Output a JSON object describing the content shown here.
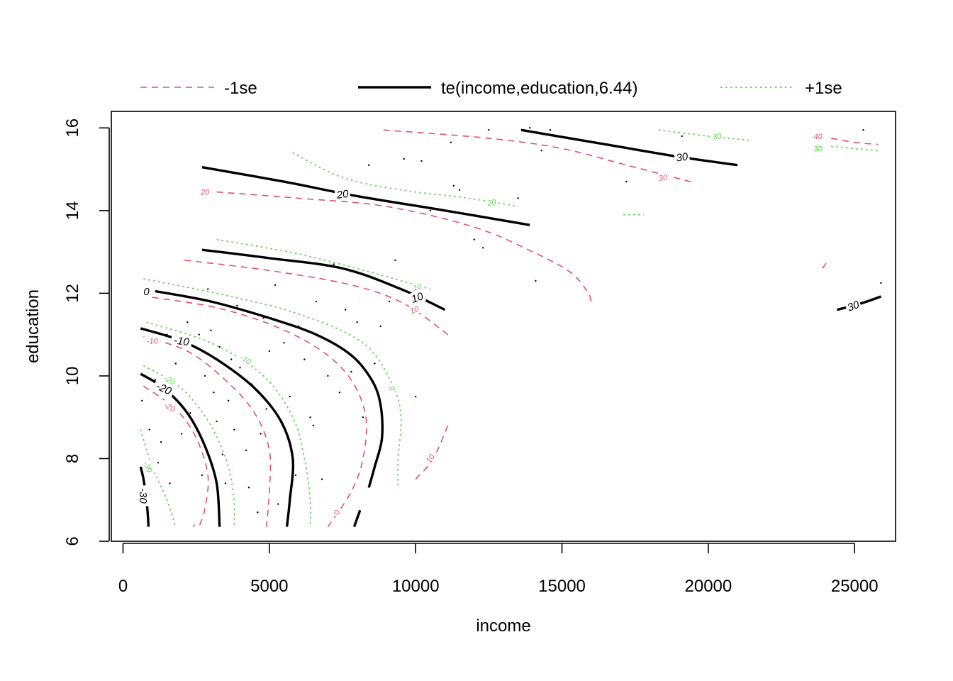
{
  "chart_data": {
    "type": "contour",
    "xlabel": "income",
    "ylabel": "education",
    "xlim": [
      -400,
      26400
    ],
    "ylim": [
      6,
      16.4
    ],
    "x_ticks": [
      0,
      5000,
      10000,
      15000,
      20000,
      25000
    ],
    "x_tick_labels": [
      "0",
      "5000",
      "10000",
      "15000",
      "20000",
      "25000"
    ],
    "y_ticks": [
      6,
      8,
      10,
      12,
      14,
      16
    ],
    "y_tick_labels": [
      "6",
      "8",
      "10",
      "12",
      "14",
      "16"
    ],
    "legend_position": "top",
    "legend": [
      {
        "label": "-1se",
        "series": "minus_se",
        "color": "#DF536B",
        "style": "dashed"
      },
      {
        "label": "te(income,education,6.44)",
        "series": "fit",
        "color": "#000000",
        "style": "solid"
      },
      {
        "label": "+1se",
        "series": "plus_se",
        "color": "#61D04F",
        "style": "dotted"
      }
    ],
    "series_styles": {
      "fit": {
        "color": "#000000",
        "dash": "",
        "width": 3.4,
        "label_size": 15
      },
      "minus_se": {
        "color": "#DF536B",
        "dash": "9,7",
        "width": 1.6,
        "label_size": 11
      },
      "plus_se": {
        "color": "#61D04F",
        "dash": "2.5,4.5",
        "width": 1.8,
        "label_size": 11
      }
    },
    "contours": [
      {
        "series": "fit",
        "label": "-30",
        "label_at": [
          700,
          7.1
        ],
        "label_rotate": 90,
        "points": [
          [
            600,
            7.8
          ],
          [
            700,
            7.5
          ],
          [
            800,
            7.0
          ],
          [
            850,
            6.6
          ],
          [
            870,
            6.35
          ]
        ]
      },
      {
        "series": "fit",
        "label": "-20",
        "label_at": [
          1400,
          9.7
        ],
        "label_rotate": 25,
        "points": [
          [
            600,
            10.05
          ],
          [
            1400,
            9.7
          ],
          [
            2200,
            9.1
          ],
          [
            2800,
            8.3
          ],
          [
            3200,
            7.4
          ],
          [
            3300,
            6.35
          ]
        ]
      },
      {
        "series": "fit",
        "label": "-10",
        "label_at": [
          2000,
          10.85
        ],
        "label_rotate": 8,
        "points": [
          [
            600,
            11.15
          ],
          [
            2000,
            10.85
          ],
          [
            3200,
            10.4
          ],
          [
            4500,
            9.7
          ],
          [
            5400,
            8.9
          ],
          [
            5800,
            8.0
          ],
          [
            5700,
            7.0
          ],
          [
            5600,
            6.35
          ]
        ]
      },
      {
        "series": "fit",
        "label": "0",
        "label_at": [
          800,
          12.05
        ],
        "label_rotate": 0,
        "points": [
          [
            1100,
            12.05
          ],
          [
            3000,
            11.8
          ],
          [
            5000,
            11.4
          ],
          [
            6600,
            11.0
          ],
          [
            7800,
            10.5
          ],
          [
            8500,
            9.9
          ],
          [
            8800,
            9.3
          ],
          [
            8850,
            8.5
          ],
          [
            8600,
            7.8
          ],
          [
            8400,
            7.3
          ]
        ]
      },
      {
        "series": "fit",
        "label": null,
        "points": [
          [
            8100,
            6.75
          ],
          [
            7900,
            6.35
          ]
        ]
      },
      {
        "series": "fit",
        "label": "10",
        "label_at": [
          10050,
          11.9
        ],
        "label_rotate": -20,
        "points": [
          [
            2700,
            13.05
          ],
          [
            5000,
            12.85
          ],
          [
            7500,
            12.6
          ],
          [
            9500,
            12.1
          ],
          [
            11000,
            11.6
          ]
        ]
      },
      {
        "series": "fit",
        "label": "20",
        "label_at": [
          7500,
          14.4
        ],
        "label_rotate": -8,
        "points": [
          [
            2700,
            15.05
          ],
          [
            5500,
            14.7
          ],
          [
            8000,
            14.35
          ],
          [
            11000,
            14.0
          ],
          [
            13900,
            13.65
          ]
        ]
      },
      {
        "series": "fit",
        "label": "30",
        "label_at": [
          19100,
          15.3
        ],
        "label_rotate": -8,
        "points": [
          [
            13600,
            15.95
          ],
          [
            16500,
            15.6
          ],
          [
            19000,
            15.3
          ],
          [
            21000,
            15.1
          ]
        ]
      },
      {
        "series": "fit",
        "label": "30",
        "label_at": [
          24950,
          11.7
        ],
        "label_rotate": -20,
        "points": [
          [
            24400,
            11.6
          ],
          [
            25200,
            11.75
          ],
          [
            25900,
            11.92
          ]
        ]
      },
      {
        "series": "minus_se",
        "label": "-30",
        "label_at": null,
        "points": [
          [
            2400,
            6.35
          ],
          [
            2450,
            6.4
          ]
        ]
      },
      {
        "series": "minus_se",
        "label": "-20",
        "label_at": [
          1600,
          9.25
        ],
        "label_rotate": 30,
        "points": [
          [
            700,
            9.75
          ],
          [
            1800,
            9.2
          ],
          [
            2500,
            8.5
          ],
          [
            2900,
            7.6
          ],
          [
            2800,
            6.8
          ],
          [
            2600,
            6.35
          ]
        ]
      },
      {
        "series": "minus_se",
        "label": "-10",
        "label_at": [
          1000,
          10.85
        ],
        "label_rotate": 0,
        "points": [
          [
            700,
            10.95
          ],
          [
            2200,
            10.6
          ],
          [
            3500,
            9.9
          ],
          [
            4500,
            9.1
          ],
          [
            5000,
            8.2
          ],
          [
            5000,
            7.2
          ],
          [
            4900,
            6.35
          ]
        ]
      },
      {
        "series": "minus_se",
        "label": "0",
        "label_at": [
          7300,
          6.7
        ],
        "label_rotate": -70,
        "points": [
          [
            1000,
            11.9
          ],
          [
            3200,
            11.65
          ],
          [
            5200,
            11.2
          ],
          [
            6800,
            10.6
          ],
          [
            7800,
            9.9
          ],
          [
            8300,
            9.0
          ],
          [
            8200,
            8.0
          ],
          [
            7800,
            7.2
          ],
          [
            7000,
            6.35
          ]
        ]
      },
      {
        "series": "minus_se",
        "label": "10",
        "label_at": [
          9950,
          11.6
        ],
        "label_rotate": -20,
        "points": [
          [
            2100,
            12.8
          ],
          [
            5000,
            12.55
          ],
          [
            7800,
            12.2
          ],
          [
            9600,
            11.75
          ],
          [
            11100,
            11.0
          ]
        ]
      },
      {
        "series": "minus_se",
        "label": "10",
        "label_at": [
          10500,
          8.0
        ],
        "label_rotate": -60,
        "points": [
          [
            10000,
            7.5
          ],
          [
            10600,
            8.0
          ],
          [
            11100,
            8.8
          ]
        ]
      },
      {
        "series": "minus_se",
        "label": "20",
        "label_at": [
          2800,
          14.45
        ],
        "label_rotate": 0,
        "points": [
          [
            3200,
            14.45
          ],
          [
            6000,
            14.3
          ],
          [
            9000,
            14.1
          ],
          [
            12000,
            13.6
          ],
          [
            14000,
            13.0
          ],
          [
            15300,
            12.5
          ],
          [
            15900,
            12.0
          ],
          [
            16000,
            11.75
          ]
        ]
      },
      {
        "series": "minus_se",
        "label": "30",
        "label_at": [
          18450,
          14.8
        ],
        "label_rotate": -10,
        "points": [
          [
            8900,
            15.95
          ],
          [
            12500,
            15.75
          ],
          [
            15000,
            15.5
          ],
          [
            17200,
            15.1
          ],
          [
            19400,
            14.7
          ]
        ]
      },
      {
        "series": "minus_se",
        "label": "40",
        "label_at": [
          23750,
          15.8
        ],
        "label_rotate": 0,
        "points": [
          [
            24200,
            15.75
          ],
          [
            25000,
            15.65
          ],
          [
            25800,
            15.6
          ]
        ]
      },
      {
        "series": "minus_se",
        "label": null,
        "points": [
          [
            23900,
            12.6
          ],
          [
            24050,
            12.75
          ]
        ]
      },
      {
        "series": "plus_se",
        "label": "-30",
        "label_at": [
          850,
          7.8
        ],
        "label_rotate": 65,
        "points": [
          [
            600,
            8.7
          ],
          [
            1000,
            7.8
          ],
          [
            1500,
            7.0
          ],
          [
            1800,
            6.35
          ]
        ]
      },
      {
        "series": "plus_se",
        "label": "-20",
        "label_at": [
          1600,
          9.9
        ],
        "label_rotate": 30,
        "points": [
          [
            700,
            10.25
          ],
          [
            2000,
            9.7
          ],
          [
            3000,
            8.8
          ],
          [
            3600,
            7.8
          ],
          [
            3800,
            6.9
          ],
          [
            3800,
            6.35
          ]
        ]
      },
      {
        "series": "plus_se",
        "label": "-10",
        "label_at": [
          4200,
          10.4
        ],
        "label_rotate": 35,
        "points": [
          [
            800,
            11.3
          ],
          [
            3000,
            10.8
          ],
          [
            4800,
            10.0
          ],
          [
            5800,
            9.0
          ],
          [
            6200,
            8.0
          ],
          [
            6400,
            7.0
          ],
          [
            6400,
            6.35
          ]
        ]
      },
      {
        "series": "plus_se",
        "label": "0",
        "label_at": [
          9200,
          9.7
        ],
        "label_rotate": 70,
        "points": [
          [
            700,
            12.35
          ],
          [
            3500,
            11.95
          ],
          [
            6000,
            11.5
          ],
          [
            8200,
            10.8
          ],
          [
            9200,
            9.8
          ],
          [
            9500,
            9.0
          ],
          [
            9400,
            8.0
          ],
          [
            9400,
            7.3
          ]
        ]
      },
      {
        "series": "plus_se",
        "label": "10",
        "label_at": [
          10050,
          12.15
        ],
        "label_rotate": -15,
        "points": [
          [
            3200,
            13.3
          ],
          [
            6000,
            12.95
          ],
          [
            8500,
            12.5
          ],
          [
            10500,
            12.1
          ]
        ]
      },
      {
        "series": "plus_se",
        "label": "20",
        "label_at": [
          12600,
          14.2
        ],
        "label_rotate": -8,
        "points": [
          [
            5800,
            15.4
          ],
          [
            7500,
            14.8
          ],
          [
            9500,
            14.5
          ],
          [
            11800,
            14.3
          ],
          [
            13500,
            14.1
          ]
        ]
      },
      {
        "series": "plus_se",
        "label": "30",
        "label_at": [
          20300,
          15.8
        ],
        "label_rotate": -8,
        "points": [
          [
            18300,
            15.95
          ],
          [
            20000,
            15.8
          ],
          [
            21400,
            15.7
          ]
        ]
      },
      {
        "series": "plus_se",
        "label": "30",
        "label_at": [
          23750,
          15.5
        ],
        "label_rotate": 0,
        "points": [
          [
            24200,
            15.55
          ],
          [
            25000,
            15.5
          ],
          [
            25800,
            15.45
          ]
        ]
      },
      {
        "series": "plus_se",
        "label": null,
        "points": [
          [
            17100,
            13.9
          ],
          [
            17800,
            13.9
          ]
        ]
      }
    ],
    "rug_points": [
      [
        650,
        9.4
      ],
      [
        900,
        8.7
      ],
      [
        1100,
        9.9
      ],
      [
        1200,
        7.9
      ],
      [
        1300,
        8.4
      ],
      [
        1500,
        11.0
      ],
      [
        1600,
        7.4
      ],
      [
        1800,
        10.3
      ],
      [
        2000,
        8.6
      ],
      [
        2200,
        11.3
      ],
      [
        2300,
        9.1
      ],
      [
        2400,
        8.9
      ],
      [
        2600,
        11.0
      ],
      [
        2700,
        7.6
      ],
      [
        2800,
        10.0
      ],
      [
        2900,
        12.1
      ],
      [
        3000,
        11.1
      ],
      [
        3100,
        9.6
      ],
      [
        3200,
        8.9
      ],
      [
        3300,
        10.7
      ],
      [
        3400,
        8.1
      ],
      [
        3500,
        7.4
      ],
      [
        3600,
        9.4
      ],
      [
        3700,
        10.4
      ],
      [
        3800,
        8.7
      ],
      [
        3900,
        11.7
      ],
      [
        4000,
        10.2
      ],
      [
        4200,
        8.2
      ],
      [
        4300,
        7.3
      ],
      [
        4400,
        9.8
      ],
      [
        4500,
        11.5
      ],
      [
        4600,
        6.7
      ],
      [
        4700,
        8.6
      ],
      [
        4800,
        11.4
      ],
      [
        4900,
        9.2
      ],
      [
        5000,
        10.6
      ],
      [
        5200,
        12.2
      ],
      [
        5300,
        6.9
      ],
      [
        5500,
        10.8
      ],
      [
        5700,
        9.5
      ],
      [
        5900,
        7.6
      ],
      [
        6000,
        11.2
      ],
      [
        6200,
        10.4
      ],
      [
        6400,
        9.0
      ],
      [
        6500,
        8.8
      ],
      [
        6600,
        11.8
      ],
      [
        6800,
        7.5
      ],
      [
        7000,
        10.0
      ],
      [
        7200,
        12.7
      ],
      [
        7400,
        9.6
      ],
      [
        7600,
        11.6
      ],
      [
        7800,
        10.1
      ],
      [
        8000,
        11.3
      ],
      [
        8200,
        9.0
      ],
      [
        8400,
        15.1
      ],
      [
        8600,
        10.3
      ],
      [
        8800,
        11.2
      ],
      [
        9100,
        11.8
      ],
      [
        9300,
        12.8
      ],
      [
        9600,
        15.25
      ],
      [
        10000,
        9.5
      ],
      [
        10200,
        15.2
      ],
      [
        10500,
        14.0
      ],
      [
        11200,
        15.65
      ],
      [
        11300,
        14.6
      ],
      [
        11500,
        14.5
      ],
      [
        12000,
        13.3
      ],
      [
        12300,
        13.1
      ],
      [
        12500,
        15.95
      ],
      [
        13500,
        14.3
      ],
      [
        13900,
        16.0
      ],
      [
        14100,
        12.3
      ],
      [
        14300,
        15.45
      ],
      [
        14600,
        15.95
      ],
      [
        17200,
        14.7
      ],
      [
        19100,
        15.8
      ],
      [
        25300,
        15.95
      ],
      [
        25900,
        12.25
      ]
    ]
  }
}
